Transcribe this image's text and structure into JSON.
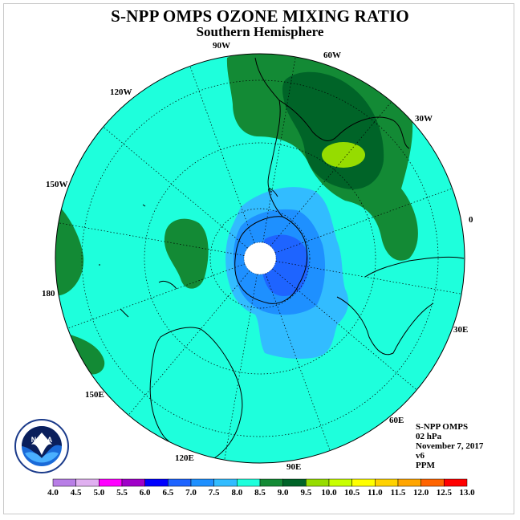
{
  "title": "S-NPP OMPS OZONE MIXING RATIO",
  "subtitle": "Southern Hemisphere",
  "longitude_labels": {
    "lon_90w": "90W",
    "lon_60w": "60W",
    "lon_120w": "120W",
    "lon_30w": "30W",
    "lon_150w": "150W",
    "lon_0": "0",
    "lon_180": "180",
    "lon_30e": "30E",
    "lon_150e": "150E",
    "lon_60e": "60E",
    "lon_120e": "120E",
    "lon_90e": "90E"
  },
  "info": {
    "instrument": "S-NPP OMPS",
    "level": "02 hPa",
    "date": "November 7, 2017",
    "version": "v6",
    "units": "PPM"
  },
  "logo": {
    "text": "NOAA",
    "ring_text": "NATIONAL OCEANIC AND ATMOSPHERIC ADMINISTRATION · U.S. DEPARTMENT OF COMMERCE"
  },
  "colorbar": {
    "ticks": [
      "4.0",
      "4.5",
      "5.0",
      "5.5",
      "6.0",
      "6.5",
      "7.0",
      "7.5",
      "8.0",
      "8.5",
      "9.0",
      "9.5",
      "10.0",
      "10.5",
      "11.0",
      "11.5",
      "12.0",
      "12.5",
      "13.0"
    ],
    "colors": [
      "#b87ee6",
      "#e0b0f0",
      "#ff00ff",
      "#a000c8",
      "#0000ff",
      "#1e64ff",
      "#1e90ff",
      "#32bcff",
      "#1effdc",
      "#138a35",
      "#006428",
      "#96dc00",
      "#c8ff00",
      "#ffff00",
      "#ffd200",
      "#ffa500",
      "#ff6400",
      "#ff0000",
      "#8b5a3c"
    ]
  },
  "field_colors": {
    "background": "#1effdc",
    "level_8_5": "#138a35",
    "level_9_0": "#006428",
    "level_9_5": "#96dc00",
    "level_7_5": "#32bcff",
    "level_7_0": "#1e90ff",
    "level_6_5": "#1e64ff"
  }
}
